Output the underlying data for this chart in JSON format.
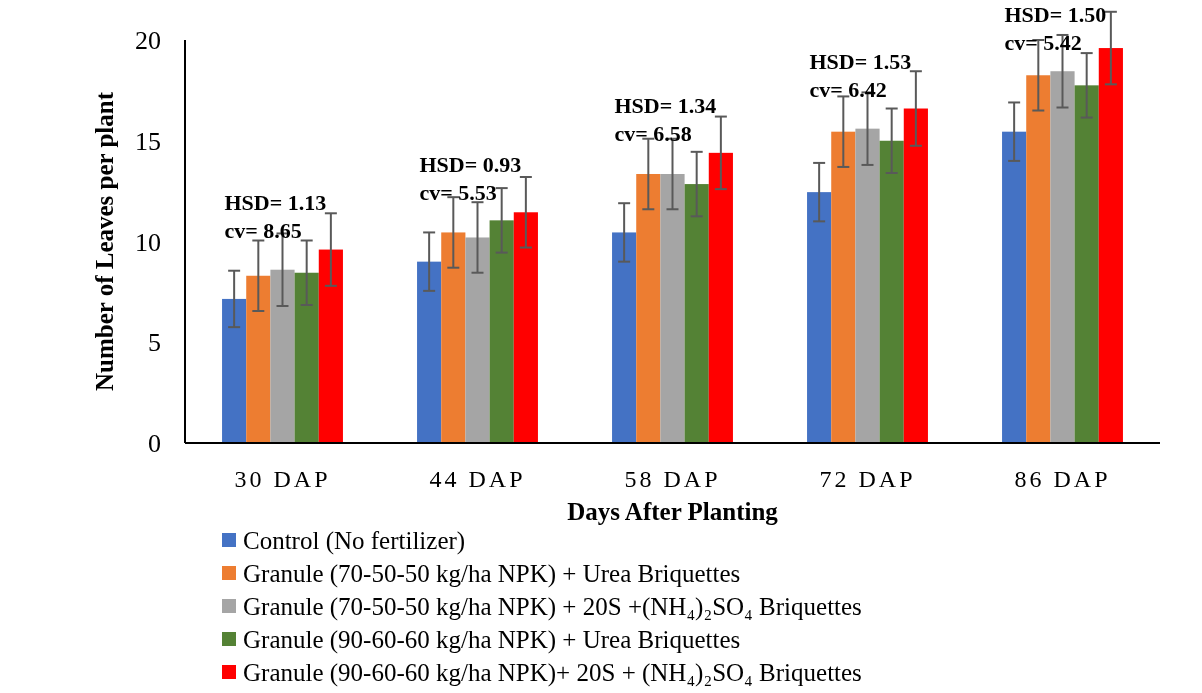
{
  "chart_data": {
    "type": "bar",
    "xlabel": "Days After Planting",
    "ylabel": "Number of Leaves per plant",
    "categories": [
      "30 DAP",
      "44 DAP",
      "58 DAP",
      "72 DAP",
      "86 DAP"
    ],
    "ylim": [
      0,
      20
    ],
    "yticks": [
      0,
      5,
      10,
      15,
      20
    ],
    "grid": false,
    "legend": "bottom",
    "series": [
      {
        "name": "Control (No fertilizer)",
        "color": "#4472c4",
        "values": [
          7.15,
          9.0,
          10.45,
          12.45,
          15.45
        ],
        "errors": [
          1.4,
          1.45,
          1.45,
          1.45,
          1.45
        ]
      },
      {
        "name": "Granule (70-50-50 kg/ha NPK) + Urea Briquettes",
        "color": "#ed7d31",
        "values": [
          8.3,
          10.45,
          13.35,
          15.45,
          18.25
        ],
        "errors": [
          1.75,
          1.75,
          1.75,
          1.75,
          1.75
        ]
      },
      {
        "name": "Granule (70-50-50 kg/ha NPK) + 20S +(NH₄)₂SO₄ Briquettes",
        "color": "#a5a5a5",
        "values": [
          8.6,
          10.2,
          13.35,
          15.6,
          18.45
        ],
        "errors": [
          1.8,
          1.75,
          1.75,
          1.8,
          1.8
        ]
      },
      {
        "name": "Granule (90-60-60 kg/ha NPK) + Urea Briquettes",
        "color": "#548235",
        "values": [
          8.45,
          11.05,
          12.85,
          15.0,
          17.75
        ],
        "errors": [
          1.6,
          1.6,
          1.6,
          1.6,
          1.6
        ]
      },
      {
        "name": "Granule (90-60-60 kg/ha NPK)+ 20S + (NH₄)₂SO₄ Briquettes",
        "color": "#ff0000",
        "values": [
          9.6,
          11.45,
          14.4,
          16.6,
          19.6
        ],
        "errors": [
          1.8,
          1.75,
          1.8,
          1.85,
          1.8
        ]
      }
    ],
    "annotations": [
      "HSD= 1.13",
      "cv= 8.65",
      "HSD= 0.93",
      "cv= 5.53",
      "HSD= 1.34",
      "cv= 6.58",
      "HSD= 1.53",
      "cv= 6.42",
      "HSD= 1.50",
      "cv= 5.42"
    ]
  }
}
